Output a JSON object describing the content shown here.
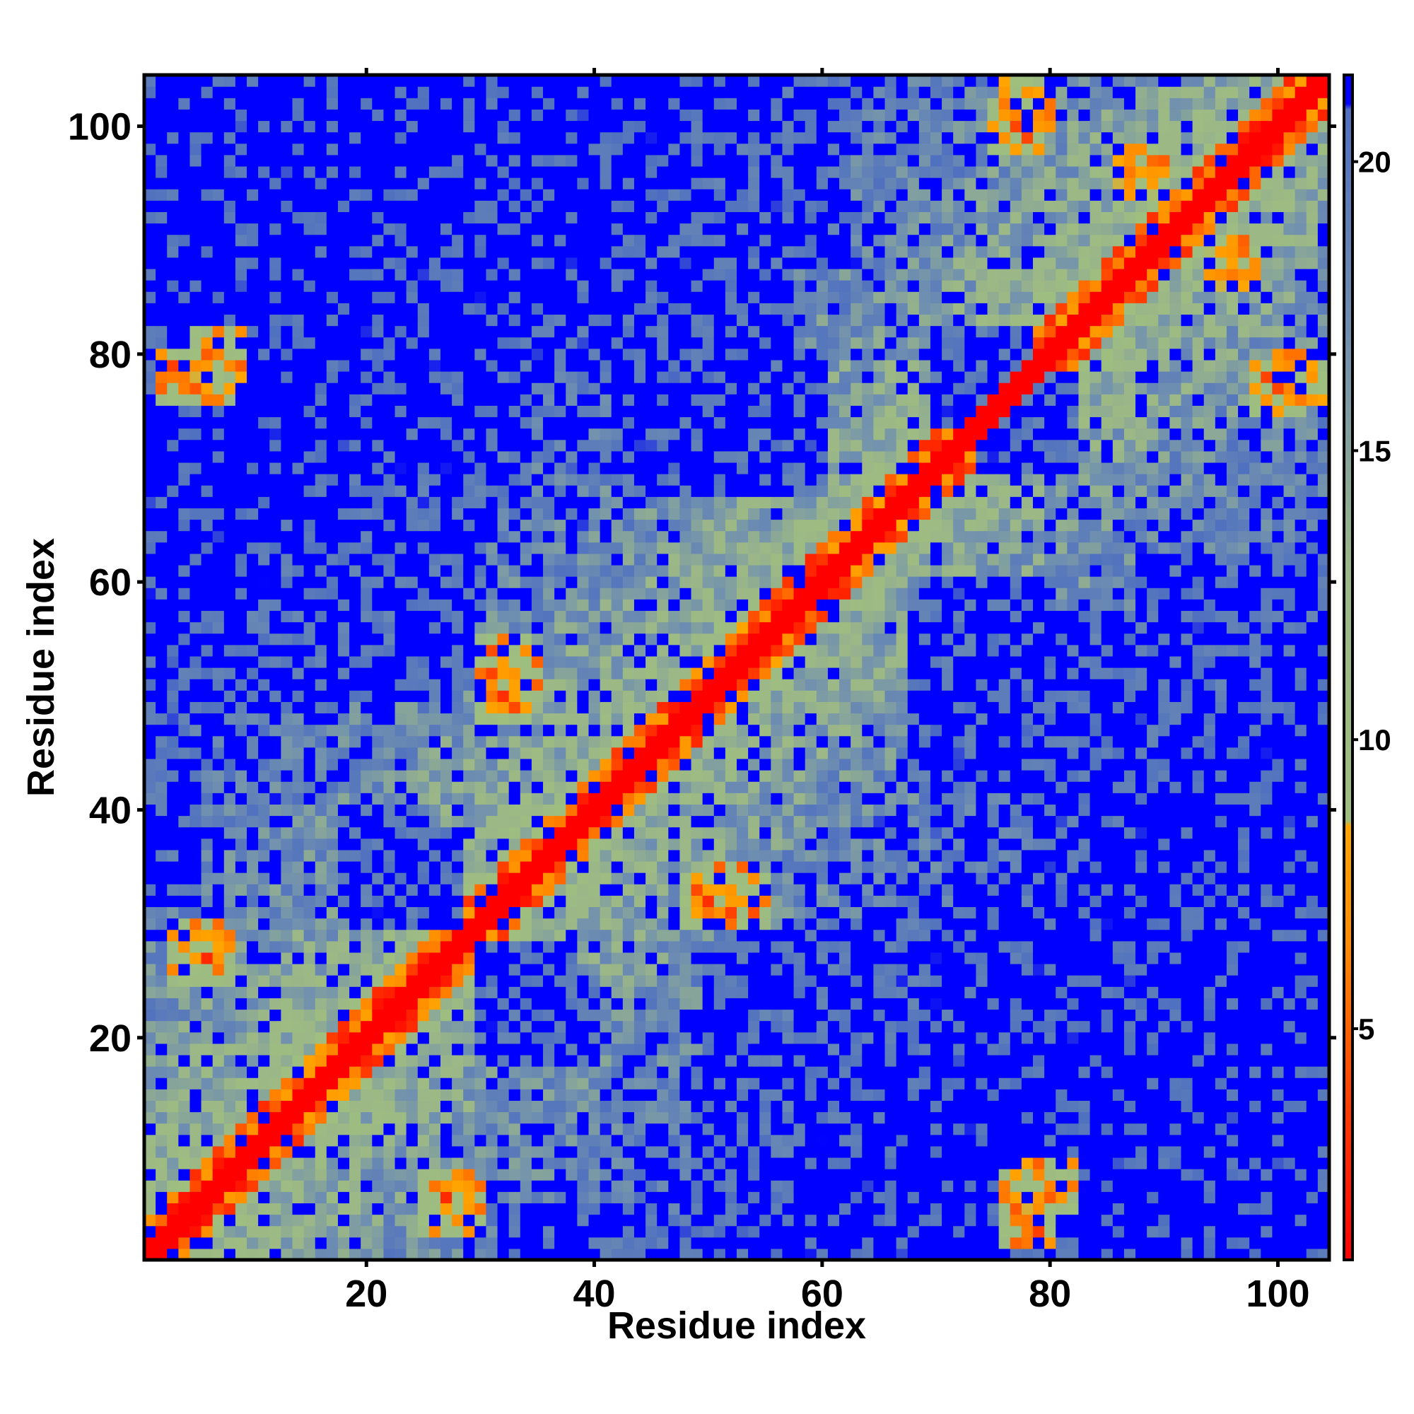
{
  "chart_data": {
    "type": "heatmap",
    "title": "",
    "xlabel": "Residue index",
    "ylabel": "Residue index",
    "n_residues": 104,
    "xlim": [
      0.5,
      104.5
    ],
    "ylim": [
      0.5,
      104.5
    ],
    "x_ticks": [
      20,
      40,
      60,
      80,
      100
    ],
    "y_ticks": [
      20,
      40,
      60,
      80,
      100
    ],
    "x_tick_labels": [
      "20",
      "40",
      "60",
      "80",
      "100"
    ],
    "y_tick_labels": [
      "20",
      "40",
      "60",
      "80",
      "100"
    ],
    "colorbar": {
      "range": [
        1,
        21.5
      ],
      "ticks": [
        5,
        10,
        15,
        20
      ],
      "tick_labels": [
        "5",
        "10",
        "15",
        "20"
      ],
      "stops": [
        {
          "value": 1,
          "color": "#ff0000"
        },
        {
          "value": 4,
          "color": "#ff4400"
        },
        {
          "value": 6.5,
          "color": "#ff8c00"
        },
        {
          "value": 8.5,
          "color": "#ffa500"
        },
        {
          "value": 8.6,
          "color": "#9fbf7f"
        },
        {
          "value": 13,
          "color": "#9bb787"
        },
        {
          "value": 17,
          "color": "#6f8fb0"
        },
        {
          "value": 20.9,
          "color": "#5070c0"
        },
        {
          "value": 21,
          "color": "#0000ff"
        }
      ]
    },
    "description_values": {
      "diagonal_distance": 1,
      "near_diagonal_distance": 5,
      "contact_clusters": [
        {
          "i": 4,
          "j": 78,
          "value": 6
        },
        {
          "i": 7,
          "j": 80,
          "value": 6
        },
        {
          "i": 5,
          "j": 28,
          "value": 6
        },
        {
          "i": 27,
          "j": 6,
          "value": 6
        },
        {
          "i": 33,
          "j": 52,
          "value": 6
        },
        {
          "i": 53,
          "j": 32,
          "value": 6
        },
        {
          "i": 50,
          "j": 32,
          "value": 6
        },
        {
          "i": 78,
          "j": 6,
          "value": 6
        },
        {
          "i": 77,
          "j": 100,
          "value": 6
        },
        {
          "i": 102,
          "j": 78,
          "value": 6
        },
        {
          "i": 88,
          "j": 96,
          "value": 6
        },
        {
          "i": 27,
          "j": 5,
          "value": 6
        }
      ],
      "far_regions": [
        {
          "x": [
            9,
            28
          ],
          "y": [
            80,
            103
          ]
        },
        {
          "x": [
            32,
            57
          ],
          "y": [
            80,
            103
          ]
        },
        {
          "x": [
            1,
            7
          ],
          "y": [
            54,
            72
          ]
        },
        {
          "x": [
            13,
            29
          ],
          "y": [
            51,
            66
          ]
        },
        {
          "x": [
            19,
            28
          ],
          "y": [
            30,
            38
          ]
        },
        {
          "x": [
            1,
            5
          ],
          "y": [
            32,
            45
          ]
        },
        {
          "x": [
            31,
            40
          ],
          "y": [
            18,
            25
          ]
        },
        {
          "x": [
            50,
            70
          ],
          "y": [
            3,
            28
          ]
        },
        {
          "x": [
            80,
            102
          ],
          "y": [
            8,
            28
          ]
        },
        {
          "x": [
            86,
            104
          ],
          "y": [
            30,
            48
          ]
        },
        {
          "x": [
            68,
            80
          ],
          "y": [
            42,
            60
          ]
        },
        {
          "x": [
            32,
            40
          ],
          "y": [
            1,
            5
          ]
        },
        {
          "x": [
            52,
            60
          ],
          "y": [
            1,
            6
          ]
        },
        {
          "x": [
            74,
            82
          ],
          "y": [
            70,
            78
          ]
        },
        {
          "x": [
            88,
            104
          ],
          "y": [
            52,
            62
          ]
        }
      ]
    }
  }
}
